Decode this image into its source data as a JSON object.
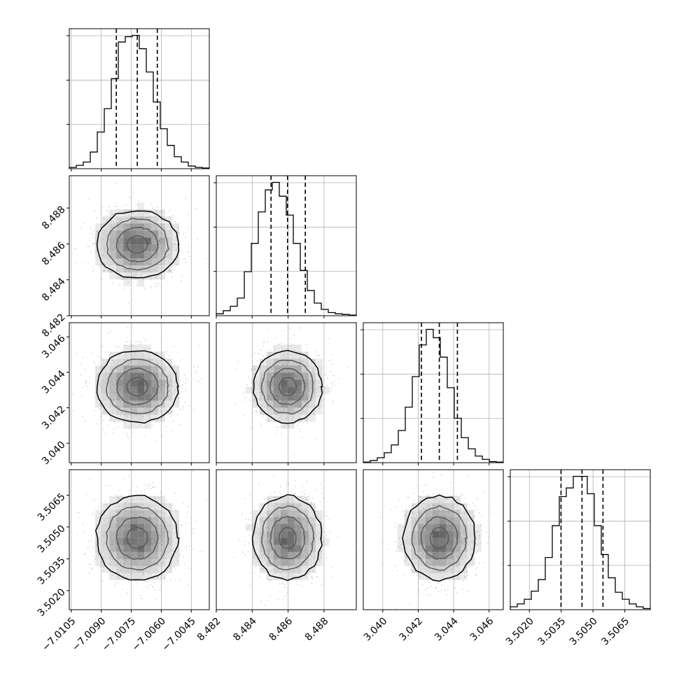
{
  "chart_data": {
    "type": "corner",
    "parameters": [
      {
        "tick_values": [
          -7.0105,
          -7.009,
          -7.0075,
          -7.006,
          -7.0045
        ],
        "tick_labels": [
          "−7.0105",
          "−7.0090",
          "−7.0075",
          "−7.0060",
          "−7.0045"
        ],
        "range": [
          -7.0106,
          -7.0036
        ],
        "quantiles": [
          -7.00825,
          -7.0072,
          -7.0062
        ],
        "hist_bins": 20,
        "hist_counts": [
          2,
          5,
          10,
          25,
          55,
          90,
          135,
          190,
          198,
          200,
          180,
          145,
          100,
          60,
          35,
          18,
          10,
          4,
          2,
          1
        ]
      },
      {
        "tick_values": [
          8.482,
          8.484,
          8.486,
          8.488
        ],
        "tick_labels": [
          "8.482",
          "8.484",
          "8.486",
          "8.488"
        ],
        "range": [
          8.482,
          8.4898
        ],
        "quantiles": [
          8.48505,
          8.48597,
          8.48696
        ],
        "hist_bins": 20,
        "hist_counts": [
          3,
          8,
          15,
          28,
          70,
          115,
          165,
          200,
          212,
          190,
          160,
          115,
          72,
          40,
          20,
          10,
          5,
          3,
          2,
          1
        ]
      },
      {
        "tick_values": [
          3.04,
          3.042,
          3.044,
          3.046
        ],
        "tick_labels": [
          "3.040",
          "3.042",
          "3.044",
          "3.046"
        ],
        "range": [
          3.0389,
          3.0468
        ],
        "quantiles": [
          3.04218,
          3.04319,
          3.04421
        ],
        "hist_bins": 20,
        "hist_counts": [
          1,
          4,
          9,
          18,
          32,
          58,
          100,
          155,
          212,
          240,
          225,
          190,
          135,
          80,
          45,
          25,
          12,
          6,
          2,
          1
        ]
      },
      {
        "tick_values": [
          3.502,
          3.5035,
          3.505,
          3.5065
        ],
        "tick_labels": [
          "3.5020",
          "3.5035",
          "3.5050",
          "3.5065"
        ],
        "range": [
          3.5011,
          3.5077
        ],
        "quantiles": [
          3.50349,
          3.50448,
          3.50547
        ],
        "hist_bins": 20,
        "hist_counts": [
          5,
          10,
          18,
          32,
          52,
          90,
          145,
          195,
          210,
          230,
          230,
          200,
          145,
          95,
          55,
          30,
          18,
          10,
          5,
          2
        ]
      }
    ],
    "grid": true,
    "contour_levels": 4,
    "colors": {
      "axes": "#000000",
      "grid": "#b0b0b0",
      "points": "#888888",
      "density": "#000000"
    }
  }
}
